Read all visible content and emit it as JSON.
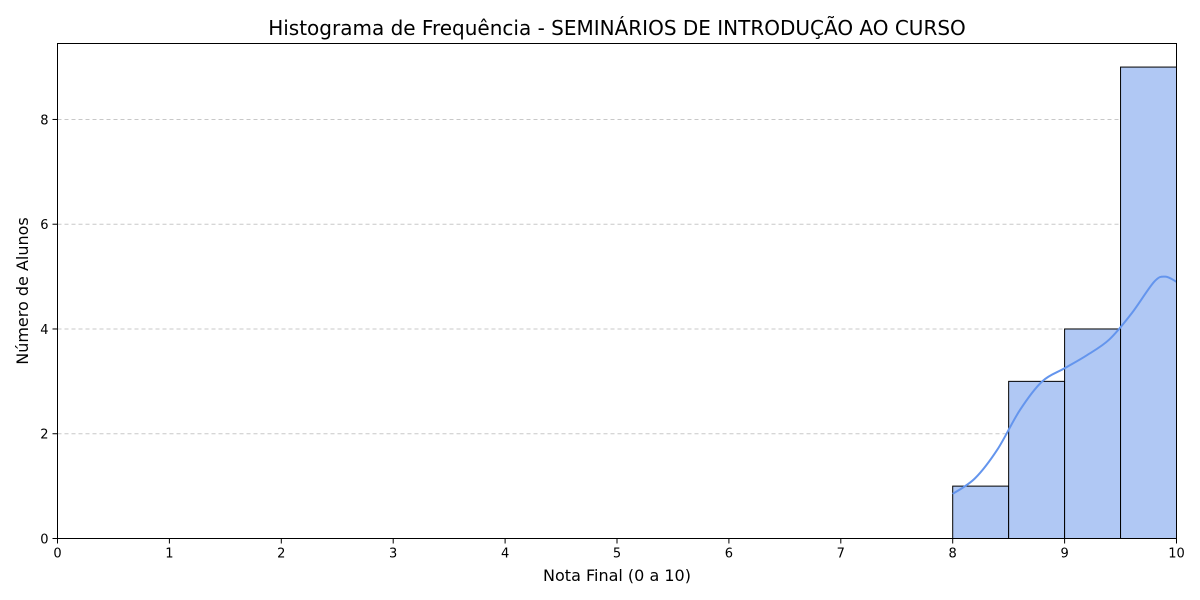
{
  "chart_data": {
    "type": "bar",
    "title": "Histograma de Frequência - SEMINÁRIOS DE INTRODUÇÃO AO CURSO",
    "xlabel": "Nota Final (0 a 10)",
    "ylabel": "Número de Alunos",
    "xlim": [
      0,
      10
    ],
    "ylim": [
      0,
      9.45
    ],
    "xticks": [
      0,
      1,
      2,
      3,
      4,
      5,
      6,
      7,
      8,
      9,
      10
    ],
    "yticks": [
      0,
      2,
      4,
      6,
      8
    ],
    "grid": "y-dashed",
    "bins": [
      {
        "x0": 8.0,
        "x1": 8.5,
        "count": 1
      },
      {
        "x0": 8.5,
        "x1": 9.0,
        "count": 3
      },
      {
        "x0": 9.0,
        "x1": 9.5,
        "count": 4
      },
      {
        "x0": 9.5,
        "x1": 10.0,
        "count": 9
      }
    ],
    "kde": {
      "x": [
        8.0,
        8.2,
        8.4,
        8.6,
        8.8,
        9.0,
        9.2,
        9.4,
        9.6,
        9.8,
        9.9,
        10.0
      ],
      "y": [
        0.85,
        1.15,
        1.7,
        2.45,
        3.0,
        3.25,
        3.5,
        3.8,
        4.3,
        4.9,
        5.0,
        4.9
      ]
    },
    "colors": {
      "bar_fill": "#b0c8f4",
      "bar_edge": "#000000",
      "kde_line": "#6495ed",
      "grid": "#c8c8c8"
    }
  }
}
